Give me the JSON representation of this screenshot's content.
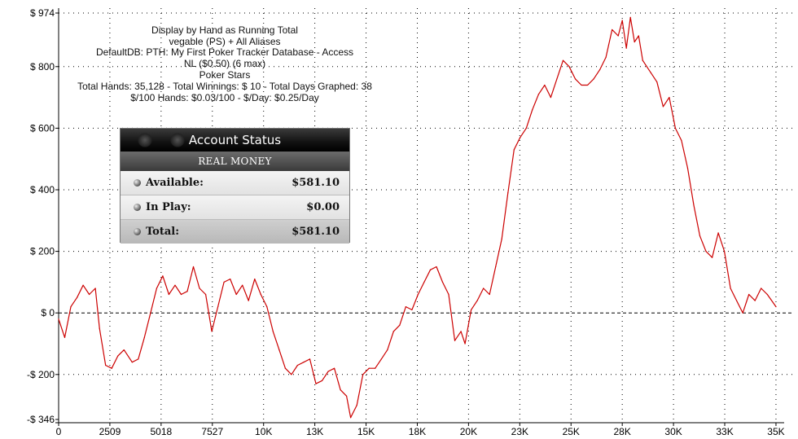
{
  "header": {
    "lines": [
      "Display by Hand as Running Total",
      "vegable (PS) + All Aliases",
      "DefaultDB: PTH: My First Poker Tracker Database - Access",
      "NL ($0.50) (6 max)",
      "Poker Stars",
      "Total Hands: 35,128 - Total Winnings: $ 10 - Total Days Graphed: 38",
      "$/100 Hands: $0.03/100 - $/Day: $0.25/Day"
    ]
  },
  "account": {
    "title": "Account Status",
    "subtitle": "REAL MONEY",
    "rows": [
      {
        "label": "Available:",
        "value": "$581.10"
      },
      {
        "label": "In Play:",
        "value": "$0.00"
      },
      {
        "label": "Total:",
        "value": "$581.10"
      }
    ]
  },
  "chart_data": {
    "type": "line",
    "xlabel": "",
    "ylabel": "",
    "xlim": [
      0,
      35128
    ],
    "ylim": [
      -346,
      974
    ],
    "x_ticks": [
      {
        "v": 0,
        "label": "0"
      },
      {
        "v": 2509,
        "label": "2509"
      },
      {
        "v": 5018,
        "label": "5018"
      },
      {
        "v": 7527,
        "label": "7527"
      },
      {
        "v": 10036,
        "label": "10K"
      },
      {
        "v": 12545,
        "label": "13K"
      },
      {
        "v": 15054,
        "label": "15K"
      },
      {
        "v": 17563,
        "label": "18K"
      },
      {
        "v": 20072,
        "label": "20K"
      },
      {
        "v": 22581,
        "label": "23K"
      },
      {
        "v": 25090,
        "label": "25K"
      },
      {
        "v": 27599,
        "label": "28K"
      },
      {
        "v": 30108,
        "label": "30K"
      },
      {
        "v": 32617,
        "label": "33K"
      },
      {
        "v": 35126,
        "label": "35K"
      }
    ],
    "y_ticks": [
      {
        "v": 974,
        "label": "$ 974"
      },
      {
        "v": 800,
        "label": "$ 800"
      },
      {
        "v": 600,
        "label": "$ 600"
      },
      {
        "v": 400,
        "label": "$ 400"
      },
      {
        "v": 200,
        "label": "$ 200"
      },
      {
        "v": 0,
        "label": "$ 0"
      },
      {
        "v": -200,
        "label": "-$ 200"
      },
      {
        "v": -346,
        "label": "-$ 346"
      }
    ],
    "grid": true,
    "series": [
      {
        "color": "#cc0000",
        "x": [
          0,
          300,
          600,
          900,
          1200,
          1500,
          1800,
          2000,
          2300,
          2600,
          2900,
          3200,
          3600,
          3900,
          4200,
          4500,
          4800,
          5100,
          5400,
          5700,
          6000,
          6300,
          6600,
          6900,
          7200,
          7500,
          7800,
          8100,
          8400,
          8700,
          9000,
          9300,
          9600,
          9900,
          10200,
          10500,
          10800,
          11100,
          11400,
          11700,
          12000,
          12300,
          12600,
          12900,
          13200,
          13500,
          13800,
          14100,
          14300,
          14600,
          14900,
          15200,
          15500,
          15800,
          16100,
          16400,
          16700,
          17000,
          17300,
          17600,
          17900,
          18200,
          18500,
          18800,
          19100,
          19400,
          19700,
          19900,
          20200,
          20500,
          20800,
          21100,
          21400,
          21700,
          22000,
          22300,
          22600,
          22900,
          23200,
          23500,
          23800,
          24100,
          24400,
          24700,
          25000,
          25300,
          25600,
          25900,
          26200,
          26500,
          26800,
          27100,
          27400,
          27600,
          27800,
          28000,
          28200,
          28400,
          28600,
          28800,
          29000,
          29300,
          29600,
          29900,
          30200,
          30500,
          30800,
          31100,
          31400,
          31700,
          32000,
          32300,
          32600,
          32900,
          33200,
          33500,
          33800,
          34100,
          34400,
          34700,
          35128
        ],
        "y": [
          -20,
          -80,
          20,
          50,
          90,
          60,
          80,
          -50,
          -170,
          -180,
          -140,
          -120,
          -160,
          -150,
          -80,
          0,
          80,
          120,
          60,
          90,
          60,
          70,
          150,
          80,
          60,
          -60,
          20,
          100,
          110,
          60,
          90,
          40,
          110,
          60,
          20,
          -60,
          -120,
          -180,
          -200,
          -170,
          -160,
          -150,
          -230,
          -220,
          -190,
          -180,
          -250,
          -270,
          -340,
          -300,
          -200,
          -180,
          -180,
          -150,
          -120,
          -60,
          -40,
          20,
          10,
          60,
          100,
          140,
          150,
          100,
          60,
          -90,
          -60,
          -100,
          10,
          40,
          80,
          60,
          150,
          240,
          390,
          530,
          570,
          600,
          660,
          710,
          740,
          700,
          760,
          820,
          800,
          760,
          740,
          740,
          760,
          790,
          830,
          920,
          900,
          950,
          860,
          960,
          880,
          900,
          820,
          800,
          780,
          750,
          670,
          700,
          600,
          560,
          470,
          350,
          250,
          200,
          180,
          260,
          200,
          80,
          40,
          0,
          60,
          40,
          80,
          60,
          20
        ]
      }
    ]
  }
}
